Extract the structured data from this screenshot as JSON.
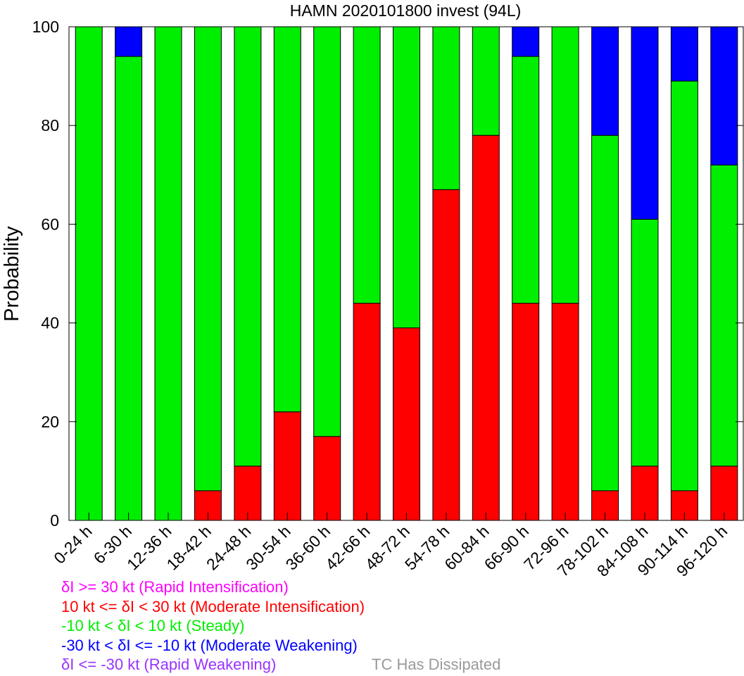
{
  "chart_data": {
    "type": "bar",
    "stacked": true,
    "title": "HAMN 2020101800 invest (94L)",
    "ylabel": "Probability",
    "xlabel": "",
    "ylim": [
      0,
      100
    ],
    "yticks": [
      0,
      20,
      40,
      60,
      80,
      100
    ],
    "categories": [
      "0-24 h",
      "6-30 h",
      "12-36 h",
      "18-42 h",
      "24-48 h",
      "30-54 h",
      "36-60 h",
      "42-66 h",
      "48-72 h",
      "54-78 h",
      "60-84 h",
      "66-90 h",
      "72-96 h",
      "78-102 h",
      "84-108 h",
      "90-114 h",
      "96-120 h"
    ],
    "series": [
      {
        "name": "10 kt <= δI < 30 kt (Moderate Intensification)",
        "color": "#ff0000",
        "values": [
          0,
          0,
          0,
          6,
          11,
          22,
          17,
          44,
          39,
          67,
          78,
          44,
          44,
          6,
          11,
          6,
          11
        ]
      },
      {
        "name": "-10 kt < δI < 10 kt (Steady)",
        "color": "#00ee00",
        "values": [
          100,
          94,
          100,
          94,
          89,
          78,
          83,
          56,
          61,
          33,
          22,
          50,
          56,
          72,
          50,
          83,
          61
        ]
      },
      {
        "name": "-30 kt < δI <= -10 kt (Moderate Weakening)",
        "color": "#0000ff",
        "values": [
          0,
          6,
          0,
          0,
          0,
          0,
          0,
          0,
          0,
          0,
          0,
          6,
          0,
          22,
          39,
          11,
          28
        ]
      }
    ],
    "legend": [
      {
        "label": "δI >= 30 kt (Rapid Intensification)",
        "color": "#ff00ff"
      },
      {
        "label": "10 kt <= δI < 30 kt (Moderate Intensification)",
        "color": "#ff0000"
      },
      {
        "label": "-10 kt < δI < 10 kt (Steady)",
        "color": "#00ee00"
      },
      {
        "label": "-30 kt < δI <= -10 kt (Moderate Weakening)",
        "color": "#0000ff"
      },
      {
        "label": "δI <= -30 kt (Rapid Weakening)",
        "color": "#9933ff"
      }
    ],
    "legend_extra": {
      "label": "TC Has Dissipated",
      "color": "#999999"
    },
    "grid": false
  }
}
